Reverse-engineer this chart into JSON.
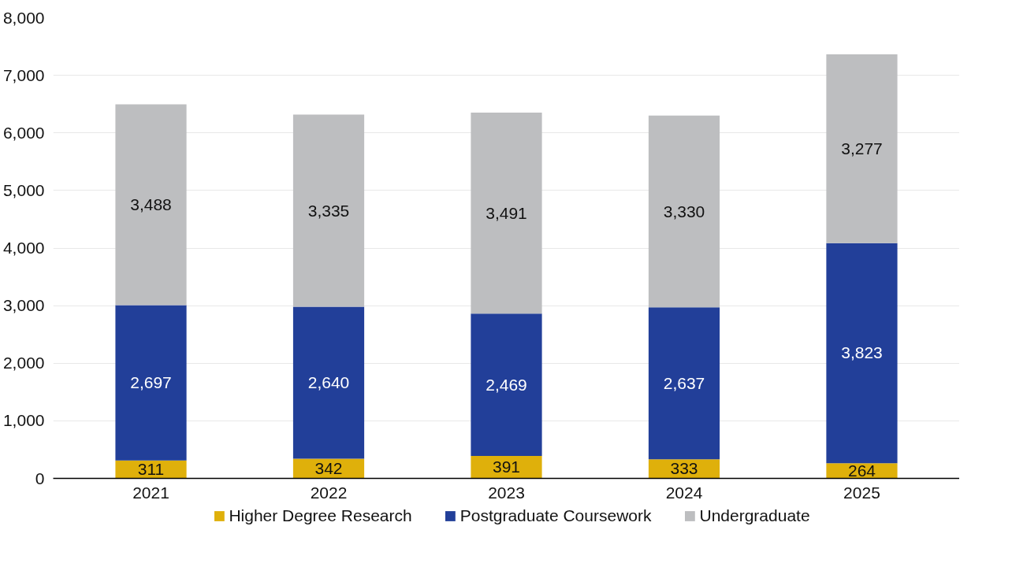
{
  "chart_data": {
    "type": "bar",
    "stacked": true,
    "categories": [
      "2021",
      "2022",
      "2023",
      "2024",
      "2025"
    ],
    "series": [
      {
        "name": "Higher Degree Research",
        "color": "#dfb00b",
        "values": [
          311,
          342,
          391,
          333,
          264
        ],
        "value_labels": [
          "311",
          "342",
          "391",
          "333",
          "264"
        ]
      },
      {
        "name": "Postgraduate Coursework",
        "color": "#223f99",
        "values": [
          2697,
          2640,
          2469,
          2637,
          3823
        ],
        "value_labels": [
          "2,697",
          "2,640",
          "2,469",
          "2,637",
          "3,823"
        ]
      },
      {
        "name": "Undergraduate",
        "color": "#bdbec0",
        "values": [
          3488,
          3335,
          3491,
          3330,
          3277
        ],
        "value_labels": [
          "3,488",
          "3,335",
          "3,491",
          "3,330",
          "3,277"
        ]
      }
    ],
    "ylim": [
      0,
      8000
    ],
    "yticks": [
      0,
      {
        "value": 1000,
        "label": "1,000"
      },
      {
        "value": 2000,
        "label": "2,000"
      },
      {
        "value": 3000,
        "label": "3,000"
      },
      {
        "value": 4000,
        "label": "4,000"
      },
      {
        "value": 5000,
        "label": "5,000"
      },
      {
        "value": 6000,
        "label": "6,000"
      },
      {
        "value": 7000,
        "label": "7,000"
      },
      {
        "value": 8000,
        "label": "8,000"
      }
    ],
    "grid": "y",
    "legend": "bottom",
    "data_labels": true
  }
}
